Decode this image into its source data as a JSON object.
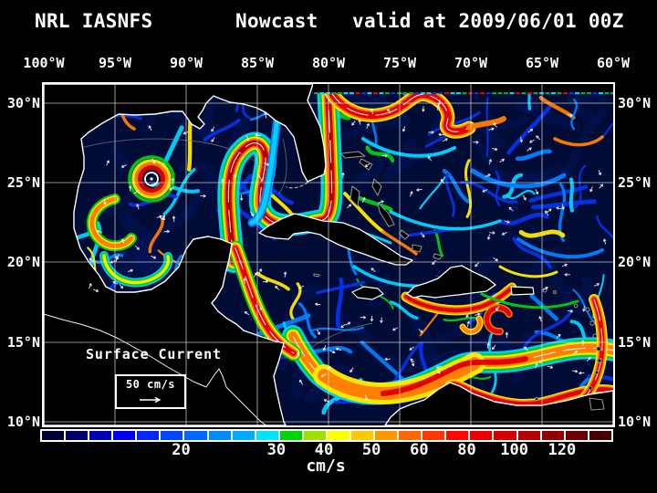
{
  "title": {
    "system": "NRL IASNFS",
    "mode": "Nowcast",
    "valid": "valid at 2009/06/01 00Z"
  },
  "axes": {
    "lon_labels": [
      "100°W",
      "95°W",
      "90°W",
      "85°W",
      "80°W",
      "75°W",
      "70°W",
      "65°W",
      "60°W"
    ],
    "lat_labels_left": [
      "30°N",
      "25°N",
      "20°N",
      "15°N",
      "10°N"
    ],
    "lat_labels_right": [
      "30°N",
      "25°N",
      "20°N",
      "15°N",
      "10°N"
    ]
  },
  "map_overlay": {
    "annotation": "Surface Current",
    "scale_label": "50 cm/s"
  },
  "colorbar": {
    "unit": "cm/s",
    "ticks": [
      "20",
      "30",
      "40",
      "50",
      "60",
      "80",
      "100",
      "120"
    ],
    "tick_after_swatch": [
      6,
      10,
      12,
      14,
      16,
      18,
      20,
      22
    ],
    "swatches": [
      "#000036",
      "#00006e",
      "#0000b4",
      "#0000f0",
      "#0028ff",
      "#0048ff",
      "#0068ff",
      "#008cff",
      "#00acff",
      "#00e4ff",
      "#00d400",
      "#a0e000",
      "#ffff00",
      "#ffc800",
      "#ff9800",
      "#ff6800",
      "#ff3800",
      "#ff0800",
      "#ee0000",
      "#d40000",
      "#b40000",
      "#940000",
      "#700000",
      "#480000"
    ]
  },
  "palette": {
    "background": "#000000",
    "text": "#ffffff",
    "ocean": "#000c36",
    "mottle": "#00135c",
    "land": "#000000",
    "coast": "#ffffff",
    "grid": "#e0e0e0",
    "bathy": "#909090",
    "arrow": "#ffffff",
    "domain_edge": "#00a83c",
    "streak_blue": "#0433e8",
    "streak_lightblue": "#0080ff",
    "streak_cyan": "#00d2ff",
    "streak_green": "#00cc16",
    "streak_yellow": "#ffe800",
    "streak_orange": "#ff7c00",
    "streak_red": "#e00000",
    "streak_darkred": "#a00000"
  }
}
